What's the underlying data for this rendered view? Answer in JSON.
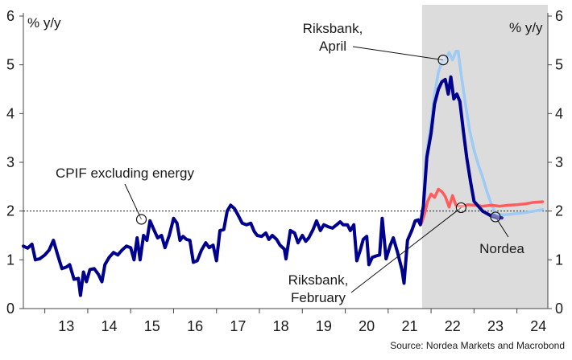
{
  "chart_data": {
    "type": "line",
    "ylabel_left": "% y/y",
    "ylabel_right": "% y/y",
    "ylim": [
      0,
      6
    ],
    "yticks": [
      "0",
      "1",
      "2",
      "3",
      "4",
      "5",
      "6"
    ],
    "xlim": [
      2012.5,
      2024.72
    ],
    "x_ticklabels": [
      "13",
      "14",
      "15",
      "16",
      "17",
      "18",
      "19",
      "20",
      "21",
      "22",
      "23",
      "24"
    ],
    "x_tick_years": [
      2013,
      2014,
      2015,
      2016,
      2017,
      2018,
      2019,
      2020,
      2021,
      2022,
      2023,
      2024
    ],
    "shaded_region": {
      "from": 2021.79,
      "to": 2024.72,
      "color": "#dcdcdd"
    },
    "reference_line": {
      "y": 2.0,
      "style": "dotted"
    },
    "source": "Source: Nordea Markets and Macrobond",
    "series": [
      {
        "name": "CPIF excluding energy",
        "color": "#00008f",
        "points": [
          [
            2012.5,
            1.28
          ],
          [
            2012.6,
            1.24
          ],
          [
            2012.7,
            1.32
          ],
          [
            2012.78,
            1.0
          ],
          [
            2012.88,
            1.02
          ],
          [
            2013.0,
            1.1
          ],
          [
            2013.1,
            1.2
          ],
          [
            2013.2,
            1.4
          ],
          [
            2013.3,
            1.1
          ],
          [
            2013.4,
            0.82
          ],
          [
            2013.5,
            0.85
          ],
          [
            2013.58,
            0.9
          ],
          [
            2013.68,
            0.6
          ],
          [
            2013.78,
            0.62
          ],
          [
            2013.83,
            0.27
          ],
          [
            2013.9,
            0.75
          ],
          [
            2013.97,
            0.55
          ],
          [
            2014.05,
            0.8
          ],
          [
            2014.15,
            0.82
          ],
          [
            2014.25,
            0.7
          ],
          [
            2014.33,
            0.55
          ],
          [
            2014.4,
            0.9
          ],
          [
            2014.5,
            1.05
          ],
          [
            2014.6,
            1.15
          ],
          [
            2014.7,
            1.1
          ],
          [
            2014.8,
            1.2
          ],
          [
            2014.9,
            1.28
          ],
          [
            2015.0,
            1.25
          ],
          [
            2015.08,
            1.0
          ],
          [
            2015.15,
            1.45
          ],
          [
            2015.22,
            1.0
          ],
          [
            2015.3,
            1.5
          ],
          [
            2015.38,
            1.4
          ],
          [
            2015.45,
            1.8
          ],
          [
            2015.55,
            1.6
          ],
          [
            2015.63,
            1.45
          ],
          [
            2015.72,
            1.5
          ],
          [
            2015.8,
            1.25
          ],
          [
            2015.9,
            1.5
          ],
          [
            2016.0,
            1.85
          ],
          [
            2016.08,
            1.75
          ],
          [
            2016.15,
            1.4
          ],
          [
            2016.22,
            1.48
          ],
          [
            2016.3,
            1.42
          ],
          [
            2016.38,
            1.4
          ],
          [
            2016.46,
            0.95
          ],
          [
            2016.55,
            0.98
          ],
          [
            2016.65,
            1.2
          ],
          [
            2016.75,
            1.35
          ],
          [
            2016.83,
            1.25
          ],
          [
            2016.92,
            1.3
          ],
          [
            2017.0,
            0.98
          ],
          [
            2017.08,
            1.6
          ],
          [
            2017.17,
            1.62
          ],
          [
            2017.25,
            2.0
          ],
          [
            2017.33,
            2.12
          ],
          [
            2017.42,
            2.05
          ],
          [
            2017.5,
            1.92
          ],
          [
            2017.6,
            1.75
          ],
          [
            2017.7,
            1.72
          ],
          [
            2017.8,
            1.75
          ],
          [
            2017.88,
            1.58
          ],
          [
            2017.95,
            1.5
          ],
          [
            2018.05,
            1.48
          ],
          [
            2018.15,
            1.55
          ],
          [
            2018.22,
            1.42
          ],
          [
            2018.3,
            1.5
          ],
          [
            2018.4,
            1.42
          ],
          [
            2018.48,
            1.3
          ],
          [
            2018.58,
            1.22
          ],
          [
            2018.62,
            1.02
          ],
          [
            2018.72,
            1.6
          ],
          [
            2018.82,
            1.55
          ],
          [
            2018.9,
            1.35
          ],
          [
            2019.0,
            1.5
          ],
          [
            2019.08,
            1.38
          ],
          [
            2019.15,
            1.45
          ],
          [
            2019.25,
            1.62
          ],
          [
            2019.33,
            1.8
          ],
          [
            2019.42,
            1.6
          ],
          [
            2019.5,
            1.72
          ],
          [
            2019.6,
            1.68
          ],
          [
            2019.7,
            1.65
          ],
          [
            2019.8,
            1.72
          ],
          [
            2019.88,
            1.78
          ],
          [
            2019.95,
            1.72
          ],
          [
            2020.05,
            1.72
          ],
          [
            2020.12,
            1.6
          ],
          [
            2020.2,
            1.72
          ],
          [
            2020.27,
            0.98
          ],
          [
            2020.35,
            1.2
          ],
          [
            2020.42,
            1.42
          ],
          [
            2020.5,
            1.48
          ],
          [
            2020.55,
            0.9
          ],
          [
            2020.63,
            1.05
          ],
          [
            2020.72,
            1.08
          ],
          [
            2020.8,
            1.1
          ],
          [
            2020.86,
            1.85
          ],
          [
            2020.9,
            1.5
          ],
          [
            2020.95,
            1.02
          ],
          [
            2021.05,
            1.3
          ],
          [
            2021.12,
            1.45
          ],
          [
            2021.22,
            1.15
          ],
          [
            2021.32,
            0.8
          ],
          [
            2021.37,
            0.52
          ],
          [
            2021.45,
            1.4
          ],
          [
            2021.55,
            1.6
          ],
          [
            2021.63,
            1.8
          ],
          [
            2021.7,
            1.82
          ],
          [
            2021.75,
            1.72
          ],
          [
            2021.82,
            2.1
          ],
          [
            2021.9,
            3.1
          ],
          [
            2022.0,
            3.6
          ],
          [
            2022.08,
            4.2
          ],
          [
            2022.17,
            4.5
          ],
          [
            2022.25,
            4.65
          ],
          [
            2022.33,
            4.7
          ],
          [
            2022.4,
            4.4
          ],
          [
            2022.46,
            4.75
          ],
          [
            2022.53,
            4.3
          ],
          [
            2022.6,
            4.4
          ],
          [
            2022.67,
            4.25
          ],
          [
            2022.75,
            3.65
          ],
          [
            2022.83,
            3.1
          ],
          [
            2022.92,
            2.6
          ],
          [
            2023.0,
            2.2
          ],
          [
            2023.1,
            2.1
          ],
          [
            2023.2,
            2.0
          ],
          [
            2023.3,
            1.95
          ],
          [
            2023.4,
            1.9
          ],
          [
            2023.5,
            1.87
          ],
          [
            2023.6,
            1.86
          ]
        ]
      },
      {
        "name": "Riksbank, February",
        "color": "#ff5c5c",
        "points": [
          [
            2021.78,
            1.75
          ],
          [
            2021.85,
            1.95
          ],
          [
            2021.92,
            2.2
          ],
          [
            2022.0,
            2.35
          ],
          [
            2022.08,
            2.28
          ],
          [
            2022.17,
            2.45
          ],
          [
            2022.25,
            2.4
          ],
          [
            2022.33,
            2.3
          ],
          [
            2022.42,
            2.08
          ],
          [
            2022.5,
            2.32
          ],
          [
            2022.58,
            2.12
          ],
          [
            2022.65,
            2.1
          ],
          [
            2022.75,
            2.1
          ],
          [
            2022.85,
            2.13
          ],
          [
            2023.0,
            2.12
          ],
          [
            2023.2,
            2.1
          ],
          [
            2023.4,
            2.12
          ],
          [
            2023.6,
            2.1
          ],
          [
            2023.8,
            2.12
          ],
          [
            2024.0,
            2.13
          ],
          [
            2024.2,
            2.15
          ],
          [
            2024.4,
            2.18
          ],
          [
            2024.6,
            2.19
          ]
        ]
      },
      {
        "name": "Riksbank, April",
        "color": "#9dcbf6",
        "points": [
          [
            2021.82,
            2.2
          ],
          [
            2021.9,
            3.2
          ],
          [
            2022.0,
            3.8
          ],
          [
            2022.08,
            4.4
          ],
          [
            2022.17,
            4.85
          ],
          [
            2022.25,
            5.05
          ],
          [
            2022.33,
            5.1
          ],
          [
            2022.42,
            5.25
          ],
          [
            2022.5,
            5.1
          ],
          [
            2022.58,
            5.28
          ],
          [
            2022.63,
            5.28
          ],
          [
            2022.7,
            4.8
          ],
          [
            2022.8,
            4.2
          ],
          [
            2022.9,
            3.65
          ],
          [
            2023.0,
            3.25
          ],
          [
            2023.1,
            2.95
          ],
          [
            2023.2,
            2.7
          ],
          [
            2023.3,
            2.4
          ],
          [
            2023.4,
            2.15
          ],
          [
            2023.5,
            1.95
          ],
          [
            2023.6,
            1.92
          ],
          [
            2023.8,
            1.93
          ],
          [
            2024.0,
            1.95
          ],
          [
            2024.2,
            1.97
          ],
          [
            2024.4,
            2.0
          ],
          [
            2024.6,
            2.03
          ]
        ]
      },
      {
        "name": "Nordea",
        "color": "#2b2d9e",
        "points": [
          [
            2023.45,
            1.92
          ],
          [
            2023.55,
            1.88
          ],
          [
            2023.65,
            1.86
          ]
        ]
      }
    ],
    "annotations": [
      {
        "key": "cpif",
        "lines": [
          "CPIF excluding energy"
        ],
        "marker": [
          2015.25,
          1.83
        ]
      },
      {
        "key": "april",
        "lines": [
          "Riksbank,",
          "April"
        ],
        "marker": [
          2022.28,
          5.1
        ]
      },
      {
        "key": "february",
        "lines": [
          "Riksbank,",
          "February"
        ],
        "marker": [
          2022.7,
          2.07
        ]
      },
      {
        "key": "nordea",
        "lines": [
          "Nordea"
        ],
        "marker": [
          2023.5,
          1.88
        ]
      }
    ]
  }
}
